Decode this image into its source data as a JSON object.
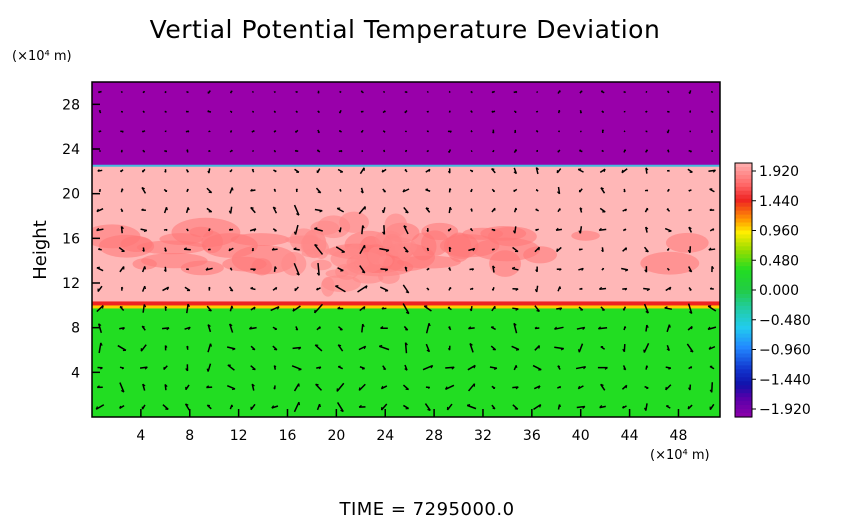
{
  "chart_data": {
    "type": "heatmap",
    "title": "Vertial Potential Temperature Deviation",
    "ylabel": "Height",
    "xlabel": "",
    "x_unit": "(×10⁴ m)",
    "y_unit": "(×10⁴ m)",
    "x_ticks": [
      4,
      8,
      12,
      16,
      20,
      24,
      28,
      32,
      36,
      40,
      44,
      48
    ],
    "y_ticks": [
      4,
      8,
      12,
      16,
      20,
      24,
      28
    ],
    "xlim": [
      0,
      51.4
    ],
    "ylim": [
      0,
      30
    ],
    "colorbar": {
      "labels": [
        "1.920",
        "1.440",
        "0.960",
        "0.480",
        "0.000",
        "−0.480",
        "−0.960",
        "−1.440",
        "−1.920"
      ],
      "range": [
        -1.92,
        1.92
      ]
    },
    "layers": [
      {
        "from": 0,
        "to": 9.9,
        "value": 0.1,
        "color": "#22dd22"
      },
      {
        "from": 9.9,
        "to": 22.5,
        "value": 1.7,
        "color": "#ffb7b7"
      },
      {
        "from": 22.5,
        "to": 30,
        "value": -1.92,
        "color": "#9900aa"
      }
    ],
    "legend": "right",
    "grid": false,
    "time_label": "TIME  =  7295000.0"
  }
}
